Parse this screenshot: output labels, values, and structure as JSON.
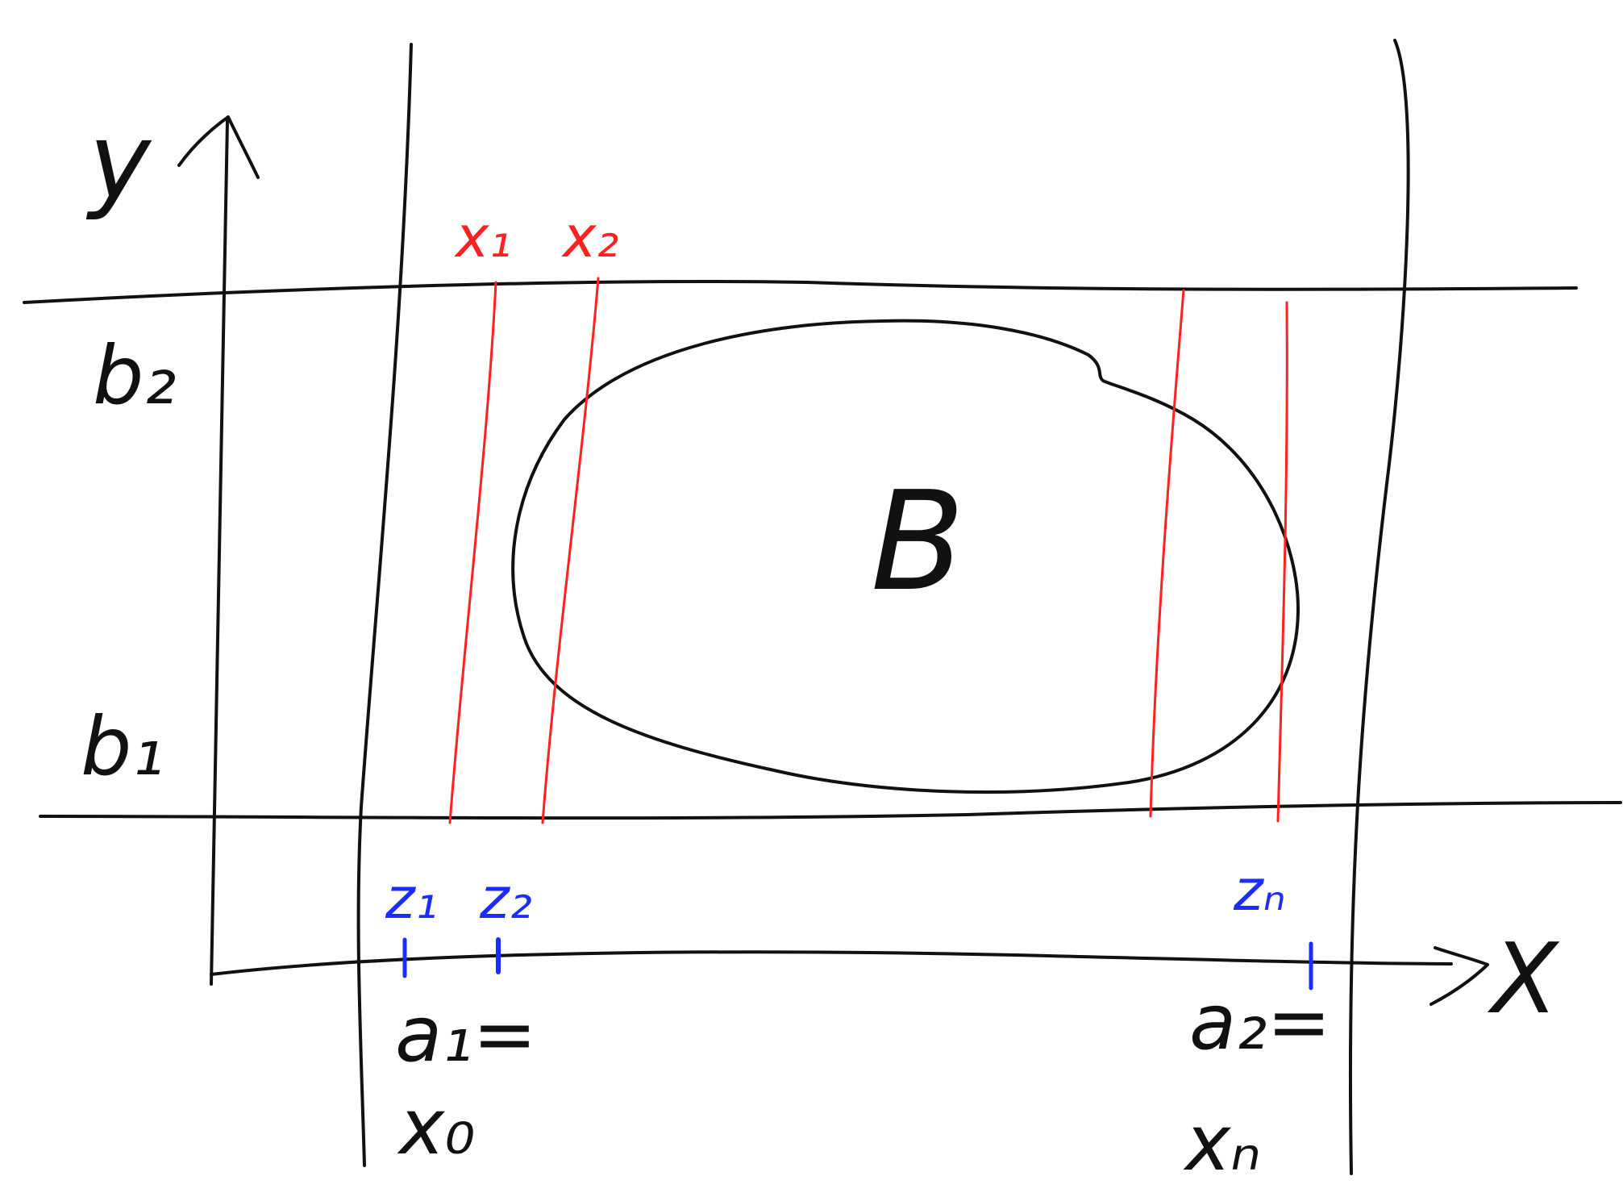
{
  "diagram": {
    "colors": {
      "ink": "#111111",
      "red": "#ff2020",
      "blue": "#1a2cff"
    },
    "axes": {
      "y_label": "y",
      "x_label": "X"
    },
    "labels": {
      "b2": "b₂",
      "b1": "b₁",
      "region": "B",
      "x1": "x₁",
      "x2": "x₂",
      "z1": "z₁",
      "z2": "z₂",
      "zn": "zₙ",
      "a1": "a₁=",
      "x0": "x₀",
      "a2": "a₂=",
      "xn": "xₙ"
    }
  }
}
